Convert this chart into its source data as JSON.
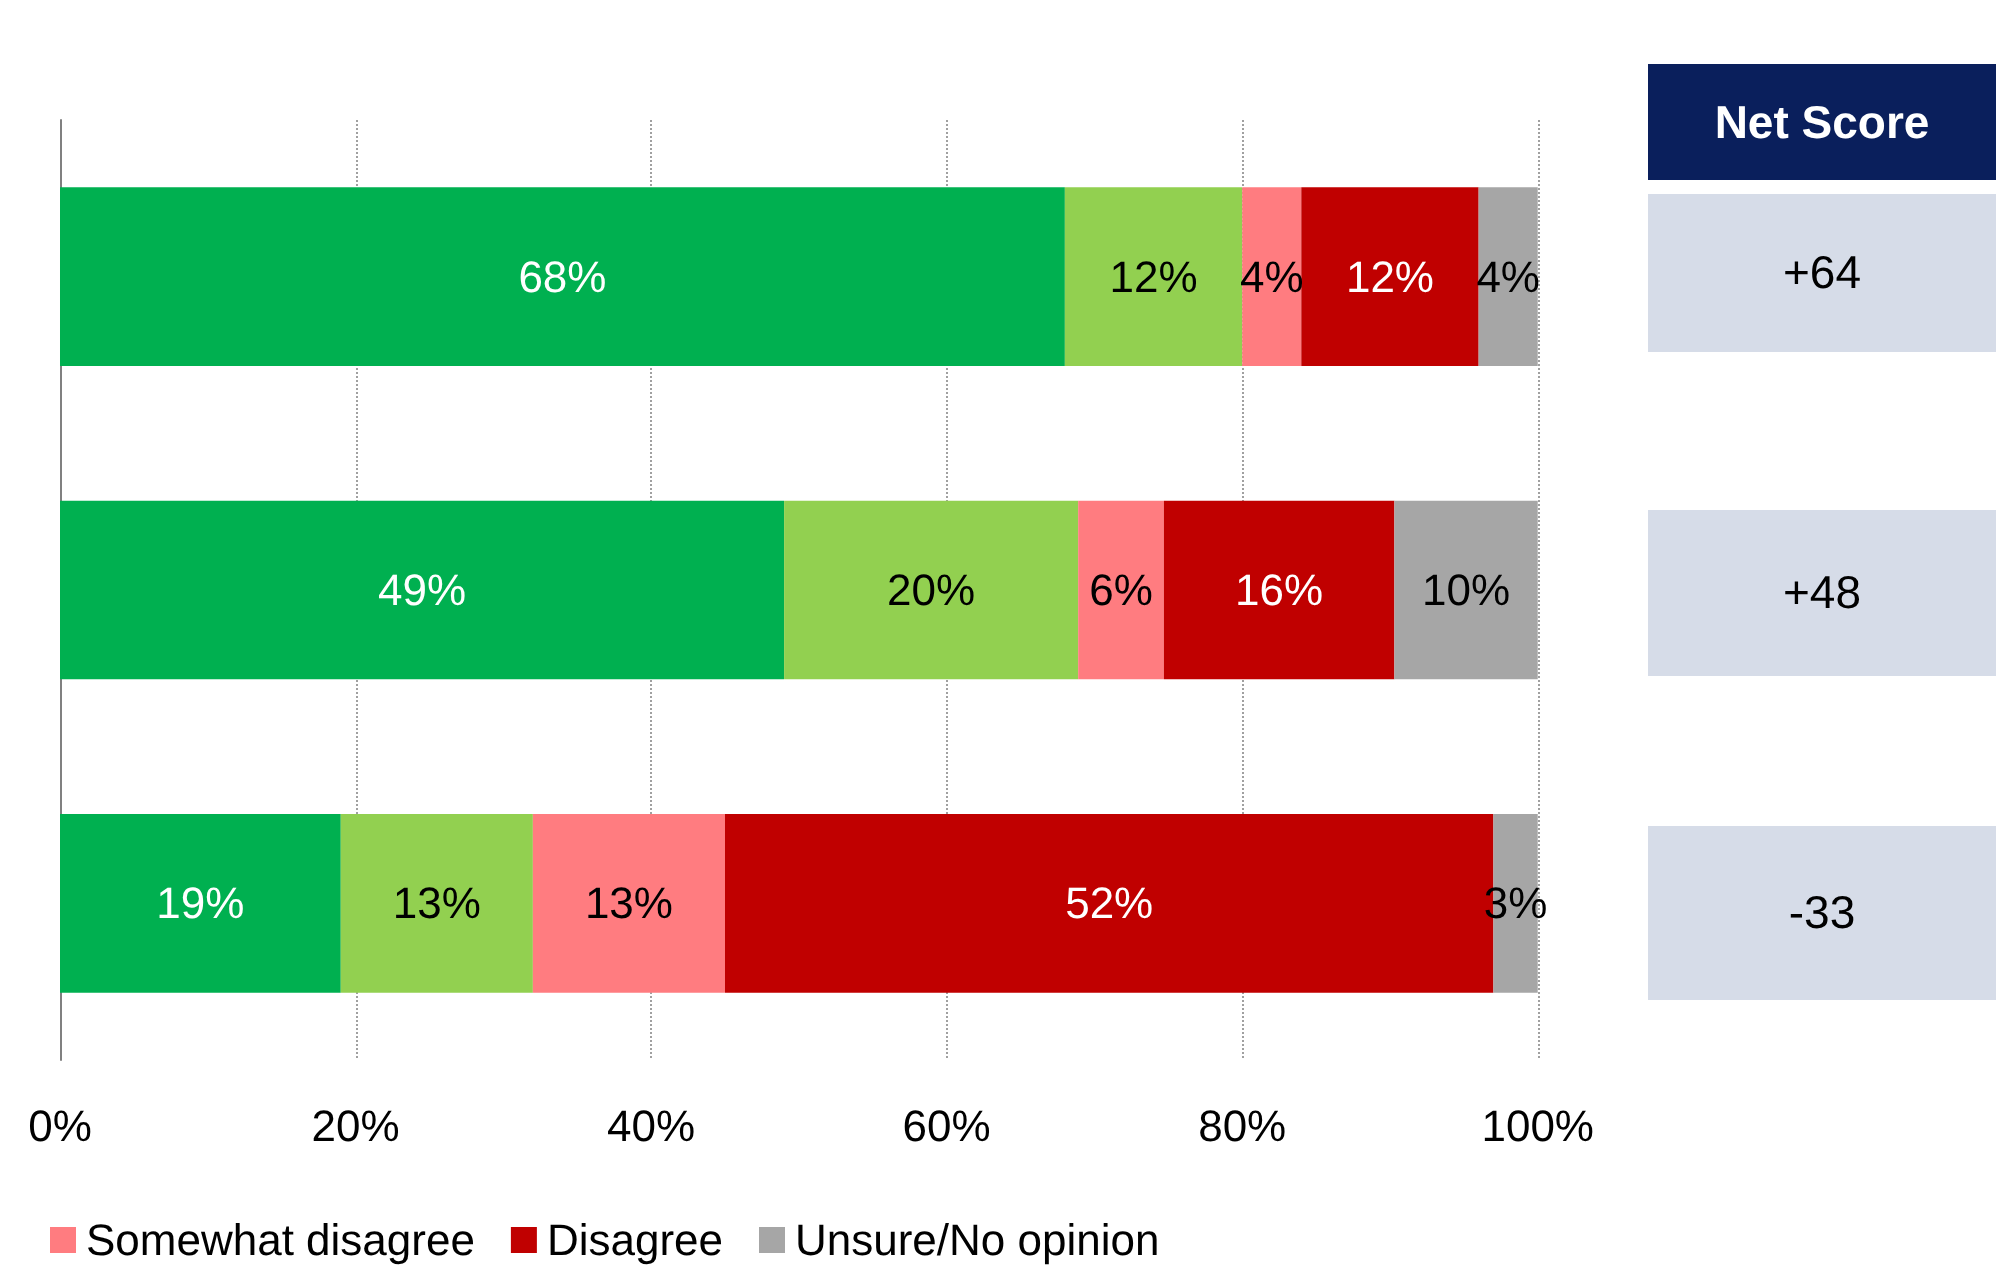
{
  "chart_data": [
    {
      "type": "bar",
      "orientation": "horizontal",
      "stacked": true,
      "categories": [
        null,
        null,
        null
      ],
      "series": [
        {
          "color": "#00b050",
          "values": [
            68,
            49,
            19
          ],
          "value_labels": [
            "68%",
            "49%",
            "19%"
          ]
        },
        {
          "color": "#92d050",
          "values": [
            12,
            19.9,
            13
          ],
          "value_labels": [
            "12%",
            "20%",
            "13%"
          ]
        },
        {
          "name": "Somewhat disagree",
          "color": "#ff7c80",
          "values": [
            4,
            5.8,
            13
          ],
          "value_labels": [
            "4%",
            "6%",
            "13%"
          ]
        },
        {
          "name": "Disagree",
          "color": "#c00000",
          "values": [
            12,
            15.6,
            52
          ],
          "value_labels": [
            "12%",
            "16%",
            "52%"
          ]
        },
        {
          "name": "Unsure/No opinion",
          "color": "#a6a6a6",
          "values": [
            4,
            9.7,
            3
          ],
          "value_labels": [
            "4%",
            "10%",
            "3%"
          ]
        }
      ],
      "xlim": [
        0,
        100
      ],
      "xticks": [
        {
          "value": 0,
          "label": "0%"
        },
        {
          "value": 20,
          "label": "20%"
        },
        {
          "value": 40,
          "label": "40%"
        },
        {
          "value": 60,
          "label": "60%"
        },
        {
          "value": 80,
          "label": "80%"
        },
        {
          "value": 100,
          "label": "100%"
        }
      ],
      "grid": "x",
      "legend": "bottom"
    },
    {
      "type": "other",
      "title": "Net Score",
      "annotations": [
        "+64",
        "+48",
        "-33"
      ]
    }
  ]
}
